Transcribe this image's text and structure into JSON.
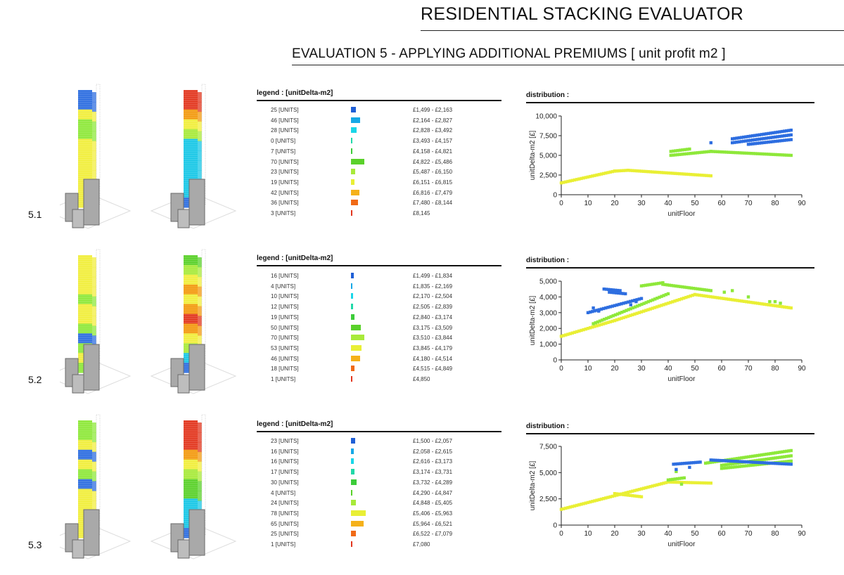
{
  "header": {
    "title": "RESIDENTIAL STACKING EVALUATOR",
    "subtitle": "EVALUATION 5 - APPLYING ADDITIONAL PREMIUMS  [ unit profit m2 ]"
  },
  "colors": {
    "blue": "#1f5fd6",
    "cyan": "#19c7e6",
    "green": "#5ad12a",
    "lime": "#a8ea3a",
    "yellow": "#f1ee3c",
    "orange": "#f39a10",
    "red": "#e2371f",
    "gray": "#a9a9a9"
  },
  "sections": [
    {
      "label": "5.1",
      "legend_title": "legend : [unitDelta-m2]",
      "legend": [
        {
          "count_text": "25 [UNITS]",
          "count": 25,
          "range": "£1,499 - £2,163",
          "color": "#1f5fd6"
        },
        {
          "count_text": "46 [UNITS]",
          "count": 46,
          "range": "£2,164 - £2,827",
          "color": "#15a8e6"
        },
        {
          "count_text": "28 [UNITS]",
          "count": 28,
          "range": "£2,828 - £3,492",
          "color": "#19d6e8"
        },
        {
          "count_text": "0 [UNITS]",
          "count": 0,
          "range": "£3,493 - £4,157",
          "color": "#20d8a8"
        },
        {
          "count_text": "7 [UNITS]",
          "count": 7,
          "range": "£4,158 - £4,821",
          "color": "#3dcc3a"
        },
        {
          "count_text": "70 [UNITS]",
          "count": 70,
          "range": "£4,822 - £5,486",
          "color": "#5ad12a"
        },
        {
          "count_text": "23 [UNITS]",
          "count": 23,
          "range": "£5,487 - £6,150",
          "color": "#a8ea3a"
        },
        {
          "count_text": "19 [UNITS]",
          "count": 19,
          "range": "£6,151 - £6,815",
          "color": "#e9ef35"
        },
        {
          "count_text": "42 [UNITS]",
          "count": 42,
          "range": "£6,816 - £7,479",
          "color": "#f5b11a"
        },
        {
          "count_text": "36 [UNITS]",
          "count": 36,
          "range": "£7,480 - £8,144",
          "color": "#f06a16"
        },
        {
          "count_text": "3 [UNITS]",
          "count": 3,
          "range": "£8,145",
          "color": "#e2371f"
        }
      ],
      "dist_title": "distribution :"
    },
    {
      "label": "5.2",
      "legend_title": "legend : [unitDelta-m2]",
      "legend": [
        {
          "count_text": "16 [UNITS]",
          "count": 16,
          "range": "£1,499 - £1,834",
          "color": "#1f5fd6"
        },
        {
          "count_text": "4 [UNITS]",
          "count": 4,
          "range": "£1,835 - £2,169",
          "color": "#15a8e6"
        },
        {
          "count_text": "10 [UNITS]",
          "count": 10,
          "range": "£2,170 - £2,504",
          "color": "#19d6e8"
        },
        {
          "count_text": "12 [UNITS]",
          "count": 12,
          "range": "£2,505 - £2,839",
          "color": "#20d8a8"
        },
        {
          "count_text": "19 [UNITS]",
          "count": 19,
          "range": "£2,840 - £3,174",
          "color": "#3dcc3a"
        },
        {
          "count_text": "50 [UNITS]",
          "count": 50,
          "range": "£3,175 - £3,509",
          "color": "#5ad12a"
        },
        {
          "count_text": "70 [UNITS]",
          "count": 70,
          "range": "£3,510 - £3,844",
          "color": "#a8ea3a"
        },
        {
          "count_text": "53 [UNITS]",
          "count": 53,
          "range": "£3,845 - £4,179",
          "color": "#e9ef35"
        },
        {
          "count_text": "46 [UNITS]",
          "count": 46,
          "range": "£4,180 - £4,514",
          "color": "#f5b11a"
        },
        {
          "count_text": "18 [UNITS]",
          "count": 18,
          "range": "£4,515 - £4,849",
          "color": "#f06a16"
        },
        {
          "count_text": "1 [UNITS]",
          "count": 1,
          "range": "£4,850",
          "color": "#e2371f"
        }
      ],
      "dist_title": "distribution :"
    },
    {
      "label": "5.3",
      "legend_title": "legend : [unitDelta-m2]",
      "legend": [
        {
          "count_text": "23 [UNITS]",
          "count": 23,
          "range": "£1,500 - £2,057",
          "color": "#1f5fd6"
        },
        {
          "count_text": "16 [UNITS]",
          "count": 16,
          "range": "£2,058 - £2,615",
          "color": "#15a8e6"
        },
        {
          "count_text": "16 [UNITS]",
          "count": 16,
          "range": "£2,616 - £3,173",
          "color": "#19d6e8"
        },
        {
          "count_text": "17 [UNITS]",
          "count": 17,
          "range": "£3,174 - £3,731",
          "color": "#20d8a8"
        },
        {
          "count_text": "30 [UNITS]",
          "count": 30,
          "range": "£3,732 - £4,289",
          "color": "#3dcc3a"
        },
        {
          "count_text": "4 [UNITS]",
          "count": 4,
          "range": "£4,290 - £4,847",
          "color": "#5ad12a"
        },
        {
          "count_text": "24 [UNITS]",
          "count": 24,
          "range": "£4,848 - £5,405",
          "color": "#a8ea3a"
        },
        {
          "count_text": "78 [UNITS]",
          "count": 78,
          "range": "£5,406 - £5,963",
          "color": "#e9ef35"
        },
        {
          "count_text": "65 [UNITS]",
          "count": 65,
          "range": "£5,964 - £6,521",
          "color": "#f5b11a"
        },
        {
          "count_text": "25 [UNITS]",
          "count": 25,
          "range": "£6,522 - £7,079",
          "color": "#f06a16"
        },
        {
          "count_text": "1 [UNITS]",
          "count": 1,
          "range": "£7,080",
          "color": "#e2371f"
        }
      ],
      "dist_title": "distribution :"
    }
  ],
  "chart_data": [
    {
      "type": "scatter",
      "title": "distribution :",
      "xlabel": "unitFloor",
      "ylabel": "unitDelta-m2 [£]",
      "xlim": [
        0,
        90
      ],
      "ylim": [
        0,
        10000
      ],
      "xticks": [
        0,
        10,
        20,
        30,
        40,
        50,
        60,
        70,
        80,
        90
      ],
      "yticks": [
        0,
        2500,
        5000,
        7500,
        10000
      ],
      "ytick_labels": [
        "0",
        "2,500",
        "5,000",
        "7,500",
        "10,000"
      ],
      "series": [
        {
          "name": "yellow",
          "color": "#e9ef35",
          "segments": [
            [
              0,
              1500,
              20,
              3000
            ],
            [
              20,
              3000,
              25,
              3100
            ],
            [
              25,
              3100,
              56,
              2400
            ]
          ]
        },
        {
          "name": "green",
          "color": "#8ee83a",
          "segments": [
            [
              41,
              5000,
              56,
              5500
            ],
            [
              56,
              5500,
              86,
              5000
            ],
            [
              41,
              5500,
              48,
              5800
            ]
          ]
        },
        {
          "name": "blue",
          "color": "#2e6ee0",
          "segments": [
            [
              64,
              7100,
              86,
              8200
            ],
            [
              64,
              6600,
              86,
              7600
            ],
            [
              70,
              6400,
              86,
              7000
            ]
          ],
          "points": [
            [
              56,
              6600
            ]
          ]
        }
      ]
    },
    {
      "type": "scatter",
      "title": "distribution :",
      "xlabel": "unitFloor",
      "ylabel": "unitDelta-m2 [£]",
      "xlim": [
        0,
        90
      ],
      "ylim": [
        0,
        5000
      ],
      "xticks": [
        0,
        10,
        20,
        30,
        40,
        50,
        60,
        70,
        80,
        90
      ],
      "yticks": [
        0,
        1000,
        2000,
        3000,
        4000,
        5000
      ],
      "ytick_labels": [
        "0",
        "1,000",
        "2,000",
        "3,000",
        "4,000",
        "5,000"
      ],
      "series": [
        {
          "name": "yellow",
          "color": "#e9ef35",
          "segments": [
            [
              0,
              1500,
              20,
              2500
            ],
            [
              20,
              2500,
              50,
              4150
            ],
            [
              50,
              4150,
              86,
              3300
            ]
          ]
        },
        {
          "name": "green",
          "color": "#8ee83a",
          "segments": [
            [
              12,
              2300,
              40,
              4200
            ],
            [
              30,
              4700,
              38,
              4900
            ],
            [
              38,
              4800,
              56,
              4400
            ]
          ],
          "points": [
            [
              61,
              4300
            ],
            [
              64,
              4400
            ],
            [
              70,
              4000
            ],
            [
              78,
              3700
            ],
            [
              80,
              3700
            ],
            [
              82,
              3600
            ]
          ]
        },
        {
          "name": "blue",
          "color": "#2e6ee0",
          "segments": [
            [
              10,
              3000,
              30,
              3900
            ],
            [
              16,
              4500,
              22,
              4400
            ],
            [
              18,
              4300,
              24,
              4200
            ]
          ],
          "points": [
            [
              12,
              3300
            ],
            [
              14,
              3100
            ],
            [
              26,
              3500
            ],
            [
              28,
              3700
            ]
          ]
        }
      ]
    },
    {
      "type": "scatter",
      "title": "distribution :",
      "xlabel": "unitFloor",
      "ylabel": "unitDelta-m2 [£]",
      "xlim": [
        0,
        90
      ],
      "ylim": [
        0,
        7500
      ],
      "xticks": [
        0,
        10,
        20,
        30,
        40,
        50,
        60,
        70,
        80,
        90
      ],
      "yticks": [
        0,
        2500,
        5000,
        7500
      ],
      "ytick_labels": [
        "0",
        "2,500",
        "5,000",
        "7,500"
      ],
      "series": [
        {
          "name": "yellow",
          "color": "#e9ef35",
          "segments": [
            [
              0,
              1500,
              40,
              4100
            ],
            [
              40,
              4100,
              56,
              4000
            ],
            [
              20,
              3000,
              30,
              2700
            ]
          ]
        },
        {
          "name": "green",
          "color": "#8ee83a",
          "segments": [
            [
              54,
              5900,
              86,
              7100
            ],
            [
              60,
              5700,
              86,
              6600
            ],
            [
              60,
              5400,
              86,
              6100
            ],
            [
              40,
              4300,
              46,
              4500
            ]
          ],
          "points": [
            [
              43,
              5100
            ],
            [
              45,
              3900
            ]
          ]
        },
        {
          "name": "blue",
          "color": "#2e6ee0",
          "segments": [
            [
              42,
              5800,
              52,
              6000
            ],
            [
              56,
              6200,
              86,
              5800
            ]
          ],
          "points": [
            [
              43,
              5300
            ],
            [
              48,
              5500
            ]
          ]
        }
      ]
    }
  ]
}
